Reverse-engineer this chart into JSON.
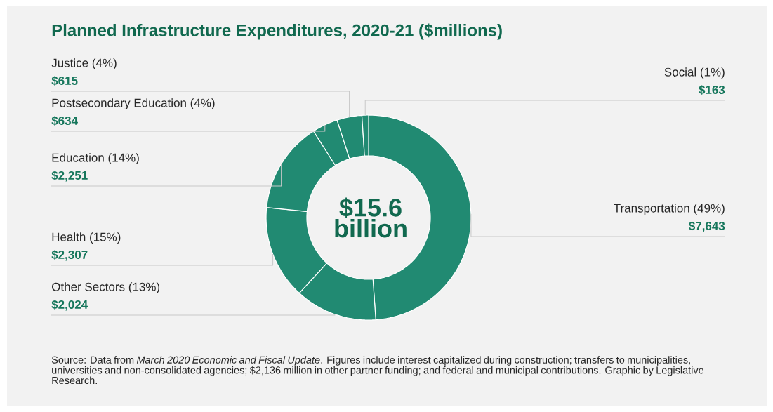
{
  "chart_data": {
    "type": "donut",
    "title": "Planned Infrastructure Expenditures, 2020-21 ($millions)",
    "categories": [
      "Transportation (49%)",
      "Other Sectors (13%)",
      "Health (15%)",
      "Education (14%)",
      "Postsecondary Education (4%)",
      "Justice (4%)",
      "Social (1%)"
    ],
    "values": [
      7643,
      2024,
      2307,
      2251,
      634,
      615,
      163
    ],
    "value_labels": [
      "$7,643",
      "$2,024",
      "$2,307",
      "$2,251",
      "$634",
      "$615",
      "$163"
    ],
    "colors": [
      "#218a72",
      "#218a72",
      "#218a72",
      "#218a72",
      "#218a72",
      "#218a72",
      "#218a72"
    ],
    "annotations": [
      "$15.6 billion",
      "Source: Data from *March 2020 Economic and Fiscal Update*. Figures include interest capitalized during construction; transfers to municipalities, universities and non-consolidated agencies; $2,136 million in other partner funding; and federal and municipal contributions. Graphic by Legislative Research."
    ]
  }
}
